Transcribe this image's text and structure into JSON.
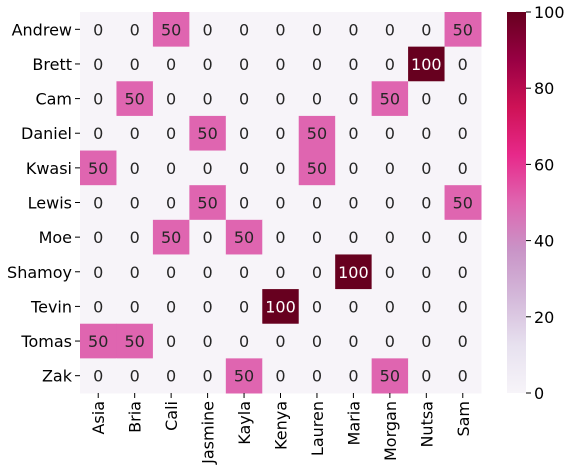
{
  "chart_data": {
    "type": "heatmap",
    "title": "",
    "xlabel": "",
    "ylabel": "",
    "rows": [
      "Andrew",
      "Brett",
      "Cam",
      "Daniel",
      "Kwasi",
      "Lewis",
      "Moe",
      "Shamoy",
      "Tevin",
      "Tomas",
      "Zak"
    ],
    "columns": [
      "Asia",
      "Bria",
      "Cali",
      "Jasmine",
      "Kayla",
      "Kenya",
      "Lauren",
      "Maria",
      "Morgan",
      "Nutsa",
      "Sam"
    ],
    "values": [
      [
        0,
        0,
        50,
        0,
        0,
        0,
        0,
        0,
        0,
        0,
        50
      ],
      [
        0,
        0,
        0,
        0,
        0,
        0,
        0,
        0,
        0,
        100,
        0
      ],
      [
        0,
        50,
        0,
        0,
        0,
        0,
        0,
        0,
        50,
        0,
        0
      ],
      [
        0,
        0,
        0,
        50,
        0,
        0,
        50,
        0,
        0,
        0,
        0
      ],
      [
        50,
        0,
        0,
        0,
        0,
        0,
        50,
        0,
        0,
        0,
        0
      ],
      [
        0,
        0,
        0,
        50,
        0,
        0,
        0,
        0,
        0,
        0,
        50
      ],
      [
        0,
        0,
        50,
        0,
        50,
        0,
        0,
        0,
        0,
        0,
        0
      ],
      [
        0,
        0,
        0,
        0,
        0,
        0,
        0,
        100,
        0,
        0,
        0
      ],
      [
        0,
        0,
        0,
        0,
        0,
        100,
        0,
        0,
        0,
        0,
        0
      ],
      [
        50,
        50,
        0,
        0,
        0,
        0,
        0,
        0,
        0,
        0,
        0
      ],
      [
        0,
        0,
        0,
        0,
        50,
        0,
        0,
        0,
        50,
        0,
        0
      ]
    ],
    "colorbar": {
      "min": 0,
      "max": 100,
      "ticks": [
        0,
        20,
        40,
        60,
        80,
        100
      ],
      "colormap": "PuRd",
      "stops": [
        "#f7f4f9",
        "#e7e1ef",
        "#d4b9da",
        "#c994c7",
        "#df65b0",
        "#e7298a",
        "#ce1256",
        "#980043",
        "#67001f"
      ]
    },
    "annotate": true,
    "grid": false,
    "legend": "colorbar-right"
  }
}
